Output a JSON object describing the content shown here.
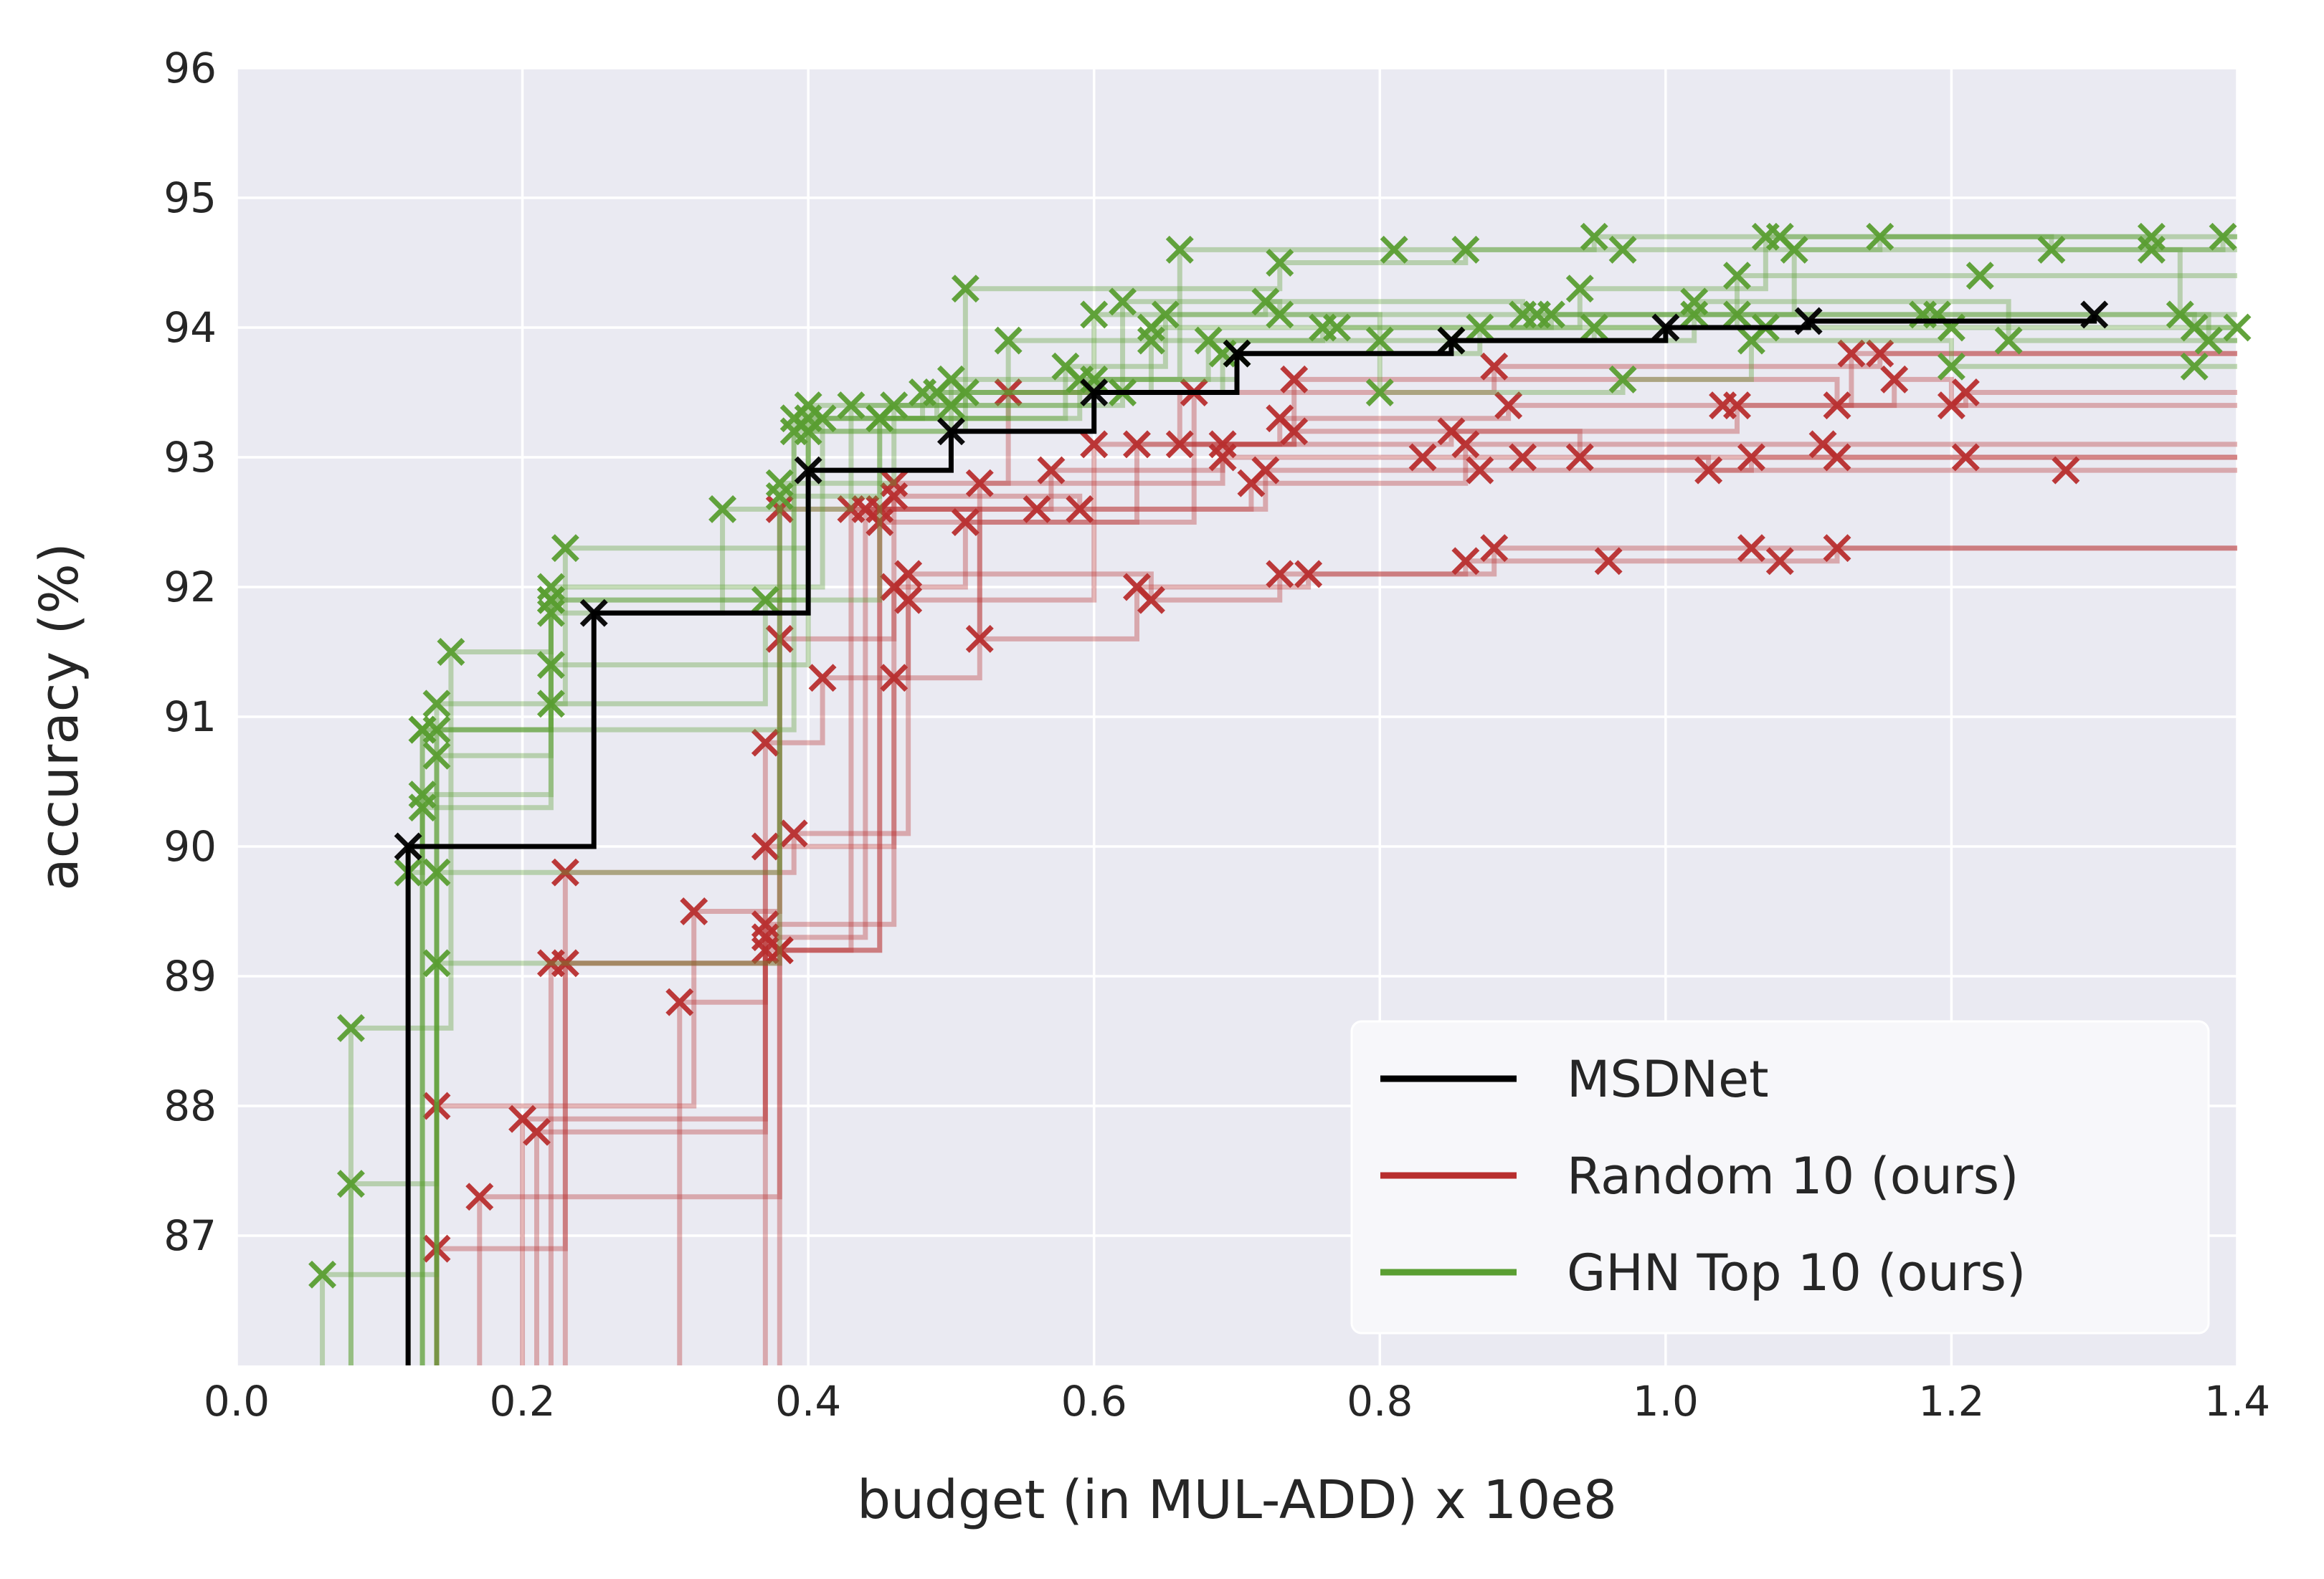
{
  "chart_data": {
    "type": "line",
    "title": "",
    "xlabel": "budget (in MUL-ADD) x 10e8",
    "ylabel": "accuracy (%)",
    "xlim": [
      0.0,
      1.4
    ],
    "ylim": [
      86.0,
      96.0
    ],
    "x_ticks": [
      "0.0",
      "0.2",
      "0.4",
      "0.6",
      "0.8",
      "1.0",
      "1.2",
      "1.4"
    ],
    "y_ticks": [
      "87",
      "88",
      "89",
      "90",
      "91",
      "92",
      "93",
      "94",
      "95",
      "96"
    ],
    "grid": true,
    "legend_position": "bottom-right",
    "colors": {
      "background": "#eaeaf2",
      "msdnet": "#000000",
      "random": "#b82e2e",
      "ghn": "#5a9e32"
    },
    "series": [
      {
        "name": "MSDNet",
        "color": "#000000",
        "step": true,
        "points": [
          [
            0.12,
            90.0
          ],
          [
            0.25,
            91.8
          ],
          [
            0.4,
            92.9
          ],
          [
            0.5,
            93.2
          ],
          [
            0.6,
            93.5
          ],
          [
            0.7,
            93.8
          ],
          [
            0.85,
            93.9
          ],
          [
            1.0,
            94.0
          ],
          [
            1.1,
            94.05
          ],
          [
            1.3,
            94.1
          ]
        ]
      },
      {
        "name": "Random 10 (ours)",
        "color": "#b82e2e",
        "step": true,
        "runs": [
          [
            [
              0.14,
              86.9
            ],
            [
              0.23,
              89.1
            ],
            [
              0.37,
              89.2
            ],
            [
              0.45,
              92.6
            ],
            [
              0.57,
              92.9
            ],
            [
              0.69,
              93.0
            ],
            [
              0.83,
              93.0
            ],
            [
              0.9,
              93.0
            ],
            [
              1.12,
              93.0
            ]
          ],
          [
            [
              0.2,
              87.9
            ],
            [
              0.37,
              90.0
            ],
            [
              0.46,
              91.3
            ],
            [
              0.52,
              92.8
            ],
            [
              0.69,
              93.1
            ],
            [
              0.85,
              93.2
            ],
            [
              1.05,
              93.4
            ],
            [
              1.21,
              93.5
            ]
          ],
          [
            [
              0.22,
              89.1
            ],
            [
              0.38,
              89.2
            ],
            [
              0.45,
              92.5
            ],
            [
              0.63,
              93.1
            ],
            [
              0.73,
              93.3
            ],
            [
              0.89,
              93.4
            ],
            [
              1.04,
              93.4
            ],
            [
              1.13,
              93.8
            ]
          ],
          [
            [
              0.14,
              88.0
            ],
            [
              0.32,
              89.5
            ],
            [
              0.38,
              91.6
            ],
            [
              0.46,
              92.0
            ],
            [
              0.51,
              92.5
            ],
            [
              0.67,
              93.5
            ],
            [
              0.88,
              93.7
            ],
            [
              1.15,
              93.8
            ]
          ],
          [
            [
              0.21,
              87.8
            ],
            [
              0.37,
              90.8
            ],
            [
              0.41,
              91.3
            ],
            [
              0.47,
              91.9
            ],
            [
              0.6,
              93.1
            ],
            [
              0.74,
              93.2
            ],
            [
              0.94,
              93.0
            ],
            [
              1.03,
              92.9
            ],
            [
              1.28,
              92.9
            ]
          ],
          [
            [
              0.17,
              87.3
            ],
            [
              0.38,
              89.2
            ],
            [
              0.43,
              92.6
            ],
            [
              0.56,
              92.6
            ],
            [
              0.72,
              92.9
            ],
            [
              0.87,
              92.9
            ],
            [
              1.06,
              93.0
            ],
            [
              1.21,
              93.0
            ]
          ],
          [
            [
              0.31,
              88.8
            ],
            [
              0.37,
              89.4
            ],
            [
              0.46,
              92.7
            ],
            [
              0.59,
              92.6
            ],
            [
              0.71,
              92.8
            ],
            [
              0.86,
              93.1
            ],
            [
              1.11,
              93.1
            ]
          ],
          [
            [
              0.23,
              89.8
            ],
            [
              0.39,
              90.1
            ],
            [
              0.47,
              92.1
            ],
            [
              0.64,
              91.9
            ],
            [
              0.73,
              92.1
            ],
            [
              0.86,
              92.2
            ],
            [
              0.96,
              92.2
            ],
            [
              1.08,
              92.2
            ],
            [
              1.12,
              92.3
            ]
          ],
          [
            [
              0.37,
              89.3
            ],
            [
              0.44,
              92.6
            ],
            [
              0.52,
              91.6
            ],
            [
              0.63,
              92.0
            ],
            [
              0.75,
              92.1
            ],
            [
              0.88,
              92.3
            ],
            [
              1.06,
              92.3
            ]
          ],
          [
            [
              0.38,
              92.6
            ],
            [
              0.46,
              92.8
            ],
            [
              0.54,
              93.5
            ],
            [
              0.66,
              93.1
            ],
            [
              0.74,
              93.6
            ],
            [
              1.12,
              93.4
            ],
            [
              1.16,
              93.6
            ],
            [
              1.2,
              93.4
            ]
          ]
        ]
      },
      {
        "name": "GHN Top 10 (ours)",
        "color": "#5a9e32",
        "step": true,
        "runs": [
          [
            [
              0.06,
              86.7
            ],
            [
              0.14,
              90.9
            ],
            [
              0.22,
              91.9
            ],
            [
              0.4,
              93.4
            ],
            [
              0.5,
              93.6
            ],
            [
              0.66,
              94.6
            ],
            [
              0.81,
              94.6
            ],
            [
              0.95,
              94.7
            ],
            [
              1.08,
              94.7
            ],
            [
              1.27,
              94.6
            ],
            [
              1.39,
              94.7
            ]
          ],
          [
            [
              0.08,
              87.4
            ],
            [
              0.14,
              91.1
            ],
            [
              0.23,
              92.3
            ],
            [
              0.4,
              93.2
            ],
            [
              0.51,
              94.3
            ],
            [
              0.73,
              94.5
            ],
            [
              0.86,
              94.6
            ],
            [
              0.97,
              94.6
            ],
            [
              1.15,
              94.7
            ],
            [
              1.34,
              94.7
            ]
          ],
          [
            [
              0.08,
              88.6
            ],
            [
              0.15,
              91.5
            ],
            [
              0.22,
              92.0
            ],
            [
              0.41,
              93.3
            ],
            [
              0.54,
              93.9
            ],
            [
              0.64,
              94.0
            ],
            [
              0.77,
              94.0
            ],
            [
              0.94,
              94.3
            ],
            [
              1.07,
              94.7
            ],
            [
              1.34,
              94.6
            ]
          ],
          [
            [
              0.12,
              89.8
            ],
            [
              0.13,
              90.9
            ],
            [
              0.22,
              91.9
            ],
            [
              0.39,
              93.3
            ],
            [
              0.49,
              93.5
            ],
            [
              0.6,
              94.1
            ],
            [
              0.72,
              94.2
            ],
            [
              0.9,
              94.1
            ],
            [
              1.05,
              94.4
            ],
            [
              1.22,
              94.4
            ]
          ],
          [
            [
              0.13,
              90.4
            ],
            [
              0.22,
              91.4
            ],
            [
              0.4,
              93.3
            ],
            [
              0.48,
              93.5
            ],
            [
              0.62,
              94.2
            ],
            [
              0.73,
              94.1
            ],
            [
              0.91,
              94.1
            ],
            [
              1.09,
              94.6
            ],
            [
              1.36,
              94.1
            ]
          ],
          [
            [
              0.14,
              90.7
            ],
            [
              0.22,
              91.1
            ],
            [
              0.37,
              91.9
            ],
            [
              0.45,
              93.3
            ],
            [
              0.58,
              93.7
            ],
            [
              0.65,
              94.1
            ],
            [
              0.8,
              93.9
            ],
            [
              0.95,
              94.0
            ],
            [
              1.05,
              94.1
            ],
            [
              1.18,
              94.1
            ],
            [
              1.38,
              93.9
            ]
          ],
          [
            [
              0.13,
              90.3
            ],
            [
              0.22,
              91.8
            ],
            [
              0.34,
              92.6
            ],
            [
              0.43,
              93.4
            ],
            [
              0.51,
              93.5
            ],
            [
              0.64,
              93.9
            ],
            [
              0.76,
              94.0
            ],
            [
              0.92,
              94.1
            ],
            [
              1.02,
              94.2
            ],
            [
              1.24,
              93.9
            ]
          ],
          [
            [
              0.14,
              89.1
            ],
            [
              0.38,
              92.8
            ],
            [
              0.46,
              93.4
            ],
            [
              0.62,
              93.5
            ],
            [
              0.69,
              93.8
            ],
            [
              0.85,
              93.9
            ],
            [
              1.02,
              94.1
            ],
            [
              1.19,
              94.1
            ],
            [
              1.37,
              94.0
            ]
          ],
          [
            [
              0.14,
              89.8
            ],
            [
              0.38,
              92.7
            ],
            [
              0.45,
              93.3
            ],
            [
              0.59,
              93.6
            ],
            [
              0.68,
              93.9
            ],
            [
              0.8,
              93.5
            ],
            [
              0.97,
              93.6
            ],
            [
              1.06,
              93.9
            ],
            [
              1.2,
              93.7
            ],
            [
              1.37,
              93.7
            ]
          ],
          [
            [
              0.13,
              90.9
            ],
            [
              0.39,
              93.2
            ],
            [
              0.5,
              93.4
            ],
            [
              0.6,
              93.6
            ],
            [
              0.7,
              93.8
            ],
            [
              0.87,
              94.0
            ],
            [
              1.07,
              94.0
            ],
            [
              1.2,
              94.0
            ],
            [
              1.4,
              94.0
            ]
          ]
        ]
      }
    ]
  }
}
